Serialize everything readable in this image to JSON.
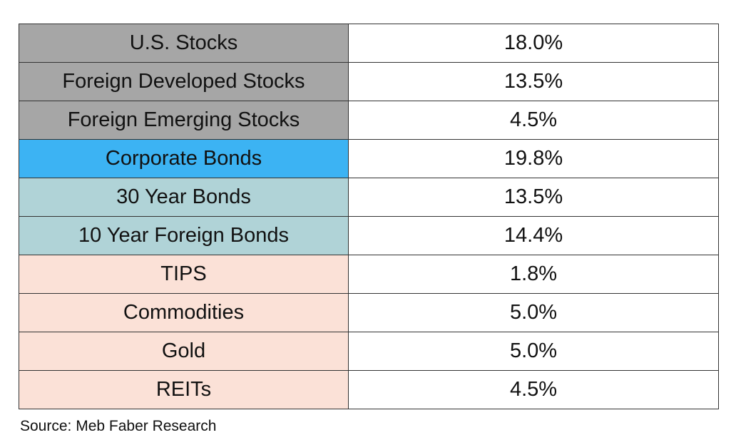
{
  "table": {
    "rows": [
      [
        "U.S. Stocks",
        "18.0%"
      ],
      [
        "Foreign Developed Stocks",
        "13.5%"
      ],
      [
        "Foreign Emerging Stocks",
        "4.5%"
      ],
      [
        "Corporate Bonds",
        "19.8%"
      ],
      [
        "30 Year Bonds",
        "13.5%"
      ],
      [
        "10 Year Foreign Bonds",
        "14.4%"
      ],
      [
        "TIPS",
        "1.8%"
      ],
      [
        "Commodities",
        "5.0%"
      ],
      [
        "Gold",
        "5.0%"
      ],
      [
        "REITs",
        "4.5%"
      ]
    ]
  },
  "source": "Source: Meb Faber Research"
}
